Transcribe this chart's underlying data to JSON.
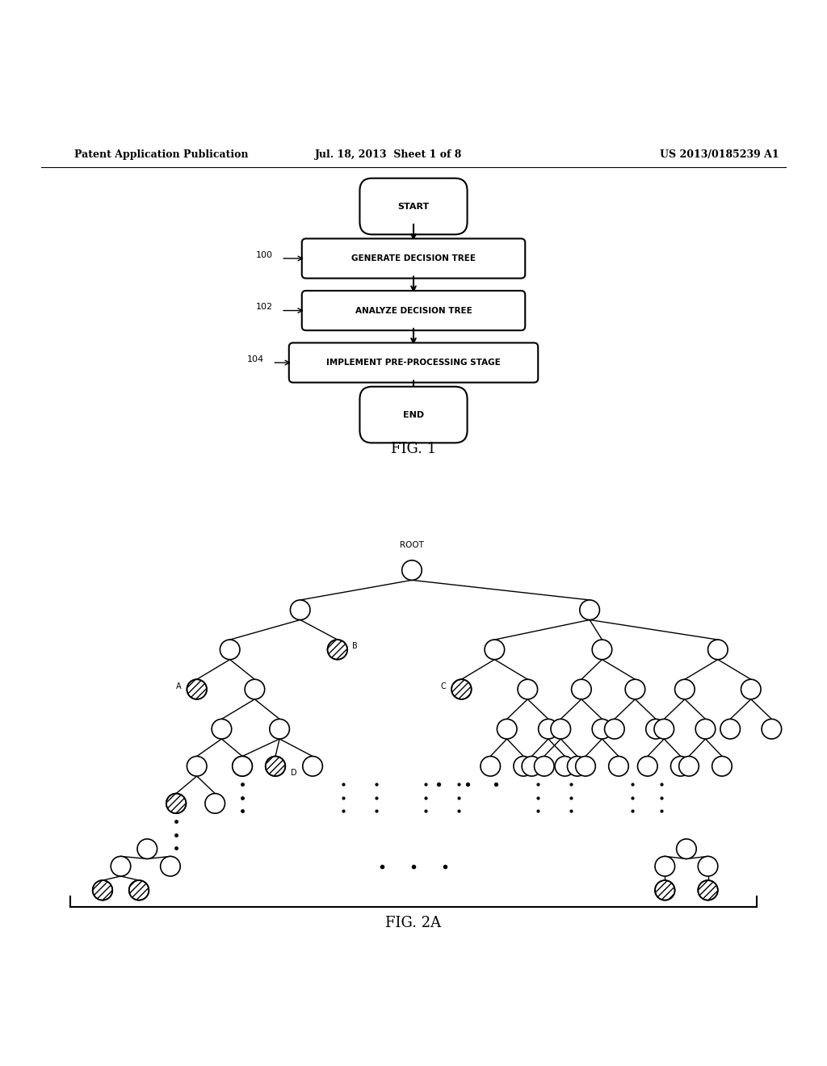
{
  "bg_color": "#ffffff",
  "header_left": "Patent Application Publication",
  "header_mid": "Jul. 18, 2013  Sheet 1 of 8",
  "header_right": "US 2013/0185239 A1",
  "fig1_title": "FIG. 1",
  "fig2_title": "FIG. 2A",
  "flowchart": {
    "start_label": "START",
    "end_label": "END",
    "boxes": [
      {
        "label": "GENERATE DECISION TREE",
        "ref": "100"
      },
      {
        "label": "ANALYZE DECISION TREE",
        "ref": "102"
      },
      {
        "label": "IMPLEMENT PRE-PROCESSING STAGE",
        "ref": "104"
      }
    ]
  },
  "tree_labels": {
    "root": "ROOT",
    "A": "A",
    "B": "B",
    "C": "C",
    "D": "D"
  },
  "text_color": "#000000"
}
